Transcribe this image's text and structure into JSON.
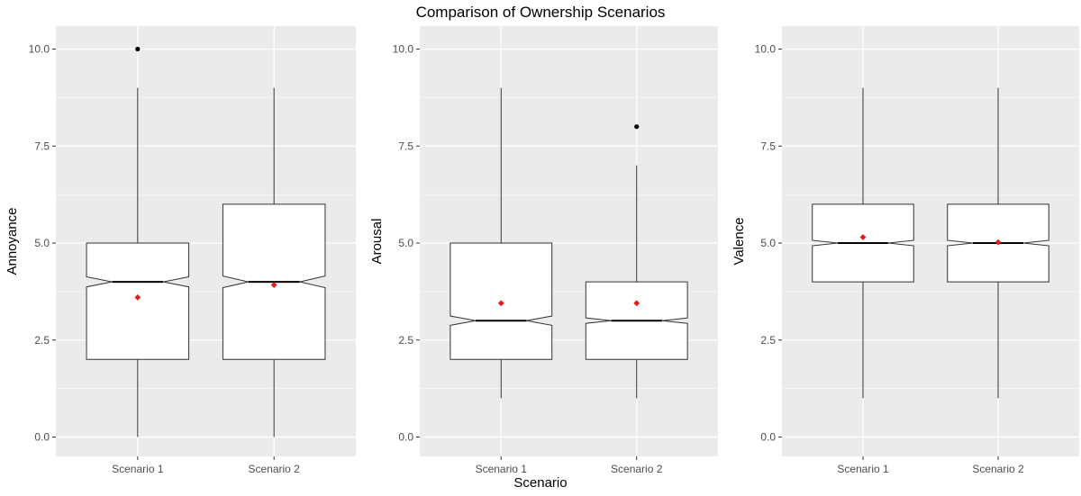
{
  "title": "Comparison of Ownership Scenarios",
  "xlabel": "Scenario",
  "colors": {
    "panel_bg": "#ebebeb",
    "grid": "#ffffff",
    "box_fill": "#ffffff",
    "box_stroke": "#333333",
    "outlier": "#000000",
    "mean_marker": "#e41a1c"
  },
  "chart_data": [
    {
      "type": "boxplot",
      "ylabel": "Annoyance",
      "ylim": [
        0,
        10
      ],
      "yticks": [
        "0.0",
        "2.5",
        "5.0",
        "7.5",
        "10.0"
      ],
      "categories": [
        "Scenario 1",
        "Scenario 2"
      ],
      "boxes": [
        {
          "whisker_low": 0,
          "q1": 2,
          "median": 4,
          "q3": 5,
          "whisker_high": 9,
          "notch_low": 3.87,
          "notch_high": 4.13,
          "mean": 3.6,
          "outliers": [
            10
          ]
        },
        {
          "whisker_low": 0,
          "q1": 2,
          "median": 4,
          "q3": 6,
          "whisker_high": 9,
          "notch_low": 3.85,
          "notch_high": 4.15,
          "mean": 3.92,
          "outliers": []
        }
      ]
    },
    {
      "type": "boxplot",
      "ylabel": "Arousal",
      "ylim": [
        0,
        10
      ],
      "yticks": [
        "0.0",
        "2.5",
        "5.0",
        "7.5",
        "10.0"
      ],
      "categories": [
        "Scenario 1",
        "Scenario 2"
      ],
      "boxes": [
        {
          "whisker_low": 1,
          "q1": 2,
          "median": 3,
          "q3": 5,
          "whisker_high": 9,
          "notch_low": 2.88,
          "notch_high": 3.12,
          "mean": 3.45,
          "outliers": []
        },
        {
          "whisker_low": 1,
          "q1": 2,
          "median": 3,
          "q3": 4,
          "whisker_high": 7,
          "notch_low": 2.93,
          "notch_high": 3.07,
          "mean": 3.45,
          "outliers": [
            8
          ]
        }
      ]
    },
    {
      "type": "boxplot",
      "ylabel": "Valence",
      "ylim": [
        0,
        10
      ],
      "yticks": [
        "0.0",
        "2.5",
        "5.0",
        "7.5",
        "10.0"
      ],
      "categories": [
        "Scenario 1",
        "Scenario 2"
      ],
      "boxes": [
        {
          "whisker_low": 1,
          "q1": 4,
          "median": 5,
          "q3": 6,
          "whisker_high": 9,
          "notch_low": 4.93,
          "notch_high": 5.07,
          "mean": 5.15,
          "outliers": []
        },
        {
          "whisker_low": 1,
          "q1": 4,
          "median": 5,
          "q3": 6,
          "whisker_high": 9,
          "notch_low": 4.93,
          "notch_high": 5.07,
          "mean": 5.02,
          "outliers": []
        }
      ]
    }
  ]
}
